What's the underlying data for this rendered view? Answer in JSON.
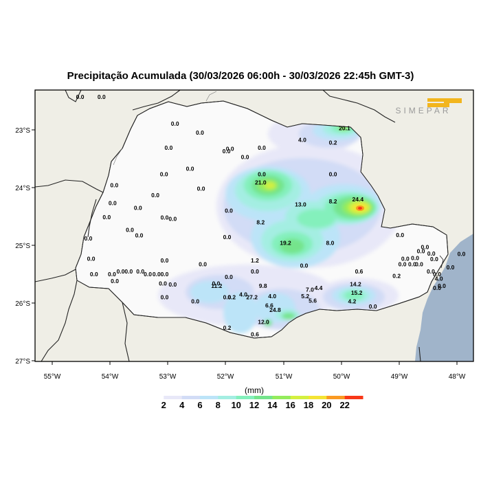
{
  "title": "Precipitação Acumulada (30/03/2026 06:00h - 30/03/2026 22:45h GMT-3)",
  "logo_text": "SIMEPAR",
  "colors": {
    "land_outside": "#efeee6",
    "state_fill": "#fafafa",
    "sea": "#a0b4ca",
    "logo_accent": "#f2b51d",
    "logo_text": "#9a9a9a"
  },
  "lat_ticks": [
    "23°S",
    "24°S",
    "25°S",
    "26°S",
    "27°S"
  ],
  "lon_ticks": [
    "55°W",
    "54°W",
    "53°W",
    "52°W",
    "51°W",
    "50°W",
    "49°W",
    "48°W"
  ],
  "legend": {
    "unit": "(mm)",
    "labels": [
      "2",
      "4",
      "6",
      "8",
      "10",
      "12",
      "14",
      "16",
      "18",
      "20",
      "22"
    ],
    "colors": [
      "#ffffff",
      "#e8e8f8",
      "#d2dcf6",
      "#bce4f8",
      "#a4eee2",
      "#84f0bc",
      "#74e48c",
      "#94ec5c",
      "#d4f040",
      "#f4e434",
      "#fa9a22",
      "#f83818"
    ]
  },
  "stations": [
    {
      "v": "0.0",
      "lat": -22.43,
      "lon": -54.52
    },
    {
      "v": "0.0",
      "lat": -22.43,
      "lon": -54.15
    },
    {
      "v": "20.1",
      "lat": -22.97,
      "lon": -49.95
    },
    {
      "v": "0.0",
      "lat": -22.89,
      "lon": -52.88
    },
    {
      "v": "0.0",
      "lat": -23.05,
      "lon": -52.45
    },
    {
      "v": "4.0",
      "lat": -23.17,
      "lon": -50.68
    },
    {
      "v": "0.2",
      "lat": -23.22,
      "lon": -50.15
    },
    {
      "v": "0.0",
      "lat": -23.31,
      "lon": -52.99
    },
    {
      "v": "0.0",
      "lat": -23.37,
      "lon": -51.99
    },
    {
      "v": "0.0",
      "lat": -23.33,
      "lon": -51.93
    },
    {
      "v": "0.0",
      "lat": -23.47,
      "lon": -51.67
    },
    {
      "v": "0.0",
      "lat": -23.31,
      "lon": -51.38
    },
    {
      "v": "0.0",
      "lat": -23.67,
      "lon": -52.62
    },
    {
      "v": "0.0",
      "lat": -23.77,
      "lon": -53.07
    },
    {
      "v": "0.0",
      "lat": -23.96,
      "lon": -53.93
    },
    {
      "v": "0.0",
      "lat": -23.77,
      "lon": -51.38
    },
    {
      "v": "0.0",
      "lat": -23.77,
      "lon": -50.15
    },
    {
      "v": "21.0",
      "lat": -23.91,
      "lon": -51.4
    },
    {
      "v": "0.0",
      "lat": -24.02,
      "lon": -52.43
    },
    {
      "v": "0.0",
      "lat": -24.13,
      "lon": -53.22
    },
    {
      "v": "24.4",
      "lat": -24.2,
      "lon": -49.72
    },
    {
      "v": "8.2",
      "lat": -24.24,
      "lon": -50.15
    },
    {
      "v": "13.0",
      "lat": -24.29,
      "lon": -50.71
    },
    {
      "v": "0.0",
      "lat": -24.27,
      "lon": -53.96
    },
    {
      "v": "0.0",
      "lat": -24.35,
      "lon": -53.52
    },
    {
      "v": "0.0",
      "lat": -24.4,
      "lon": -51.95
    },
    {
      "v": "0.0",
      "lat": -24.51,
      "lon": -54.06
    },
    {
      "v": "0.0",
      "lat": -24.52,
      "lon": -53.06
    },
    {
      "v": "0.0",
      "lat": -24.54,
      "lon": -52.92
    },
    {
      "v": "8.2",
      "lat": -24.6,
      "lon": -51.4
    },
    {
      "v": "0.0",
      "lat": -24.73,
      "lon": -53.66
    },
    {
      "v": "0.0",
      "lat": -24.83,
      "lon": -53.5
    },
    {
      "v": "0.0",
      "lat": -24.88,
      "lon": -54.38
    },
    {
      "v": "0.0",
      "lat": -24.82,
      "lon": -48.99
    },
    {
      "v": "0.0",
      "lat": -24.86,
      "lon": -51.98
    },
    {
      "v": "19.2",
      "lat": -24.96,
      "lon": -50.97
    },
    {
      "v": "8.0",
      "lat": -24.96,
      "lon": -50.2
    },
    {
      "v": "0.0",
      "lat": -25.03,
      "lon": -48.56
    },
    {
      "v": "0.0",
      "lat": -25.1,
      "lon": -48.63
    },
    {
      "v": "0.0",
      "lat": -25.14,
      "lon": -48.45
    },
    {
      "v": "0.0",
      "lat": -25.22,
      "lon": -48.73
    },
    {
      "v": "0.0",
      "lat": -25.23,
      "lon": -54.33
    },
    {
      "v": "0.0",
      "lat": -25.26,
      "lon": -53.06
    },
    {
      "v": "1.2",
      "lat": -25.26,
      "lon": -51.5
    },
    {
      "v": "0.0",
      "lat": -25.23,
      "lon": -48.9
    },
    {
      "v": "0.0",
      "lat": -25.24,
      "lon": -48.4
    },
    {
      "v": "0.0",
      "lat": -25.15,
      "lon": -47.93
    },
    {
      "v": "0.0",
      "lat": -25.33,
      "lon": -52.4
    },
    {
      "v": "0.0",
      "lat": -25.33,
      "lon": -48.78
    },
    {
      "v": "0.0",
      "lat": -25.33,
      "lon": -48.95
    },
    {
      "v": "0.0",
      "lat": -25.33,
      "lon": -48.66
    },
    {
      "v": "0.0",
      "lat": -25.35,
      "lon": -50.65
    },
    {
      "v": "0.0",
      "lat": -25.45,
      "lon": -53.82
    },
    {
      "v": "0.0",
      "lat": -25.45,
      "lon": -53.68
    },
    {
      "v": "0.0",
      "lat": -25.45,
      "lon": -53.48
    },
    {
      "v": "0.0",
      "lat": -25.45,
      "lon": -51.5
    },
    {
      "v": "0.6",
      "lat": -25.45,
      "lon": -49.7
    },
    {
      "v": "0.0",
      "lat": -25.45,
      "lon": -48.46
    },
    {
      "v": "0.0",
      "lat": -25.38,
      "lon": -48.12
    },
    {
      "v": "0.0",
      "lat": -25.5,
      "lon": -54.28
    },
    {
      "v": "0.0",
      "lat": -25.5,
      "lon": -53.97
    },
    {
      "v": "0.0",
      "lat": -25.5,
      "lon": -53.35
    },
    {
      "v": "0.0",
      "lat": -25.5,
      "lon": -53.2
    },
    {
      "v": "0.0",
      "lat": -25.5,
      "lon": -53.06
    },
    {
      "v": "0.0",
      "lat": -25.5,
      "lon": -48.35
    },
    {
      "v": "0.2",
      "lat": -25.53,
      "lon": -49.05
    },
    {
      "v": "0.0",
      "lat": -25.55,
      "lon": -51.95
    },
    {
      "v": "0.0",
      "lat": -25.62,
      "lon": -53.92
    },
    {
      "v": "4.0",
      "lat": -25.58,
      "lon": -48.32
    },
    {
      "v": "0.0",
      "lat": -25.66,
      "lon": -53.09
    },
    {
      "v": "0.0",
      "lat": -25.68,
      "lon": -52.92
    },
    {
      "v": "0.0",
      "lat": -25.66,
      "lon": -52.17
    },
    {
      "v": "11.2",
      "lat": -25.7,
      "lon": -52.16
    },
    {
      "v": "9.8",
      "lat": -25.7,
      "lon": -51.36
    },
    {
      "v": "14.2",
      "lat": -25.67,
      "lon": -49.76
    },
    {
      "v": "0.0",
      "lat": -25.74,
      "lon": -48.35
    },
    {
      "v": "0.0",
      "lat": -25.7,
      "lon": -48.27
    },
    {
      "v": "7.0",
      "lat": -25.77,
      "lon": -50.55
    },
    {
      "v": "4.4",
      "lat": -25.74,
      "lon": -50.4
    },
    {
      "v": "15.2",
      "lat": -25.82,
      "lon": -49.74
    },
    {
      "v": "4.0",
      "lat": -25.88,
      "lon": -51.2
    },
    {
      "v": "4.0",
      "lat": -25.85,
      "lon": -51.7
    },
    {
      "v": "5.2",
      "lat": -25.88,
      "lon": -50.63
    },
    {
      "v": "0.0",
      "lat": -25.9,
      "lon": -53.06
    },
    {
      "v": "0.0",
      "lat": -25.9,
      "lon": -51.98
    },
    {
      "v": "0.2",
      "lat": -25.9,
      "lon": -51.9
    },
    {
      "v": "27.2",
      "lat": -25.9,
      "lon": -51.55
    },
    {
      "v": "5.6",
      "lat": -25.96,
      "lon": -50.5
    },
    {
      "v": "4.2",
      "lat": -25.97,
      "lon": -49.82
    },
    {
      "v": "0.0",
      "lat": -25.97,
      "lon": -52.53
    },
    {
      "v": "6.6",
      "lat": -26.04,
      "lon": -51.25
    },
    {
      "v": "0.0",
      "lat": -26.06,
      "lon": -49.46
    },
    {
      "v": "24.8",
      "lat": -26.12,
      "lon": -51.15
    },
    {
      "v": "12.0",
      "lat": -26.33,
      "lon": -51.35
    },
    {
      "v": "0.2",
      "lat": -26.43,
      "lon": -51.98
    },
    {
      "v": "0.6",
      "lat": -26.54,
      "lon": -51.5
    }
  ]
}
